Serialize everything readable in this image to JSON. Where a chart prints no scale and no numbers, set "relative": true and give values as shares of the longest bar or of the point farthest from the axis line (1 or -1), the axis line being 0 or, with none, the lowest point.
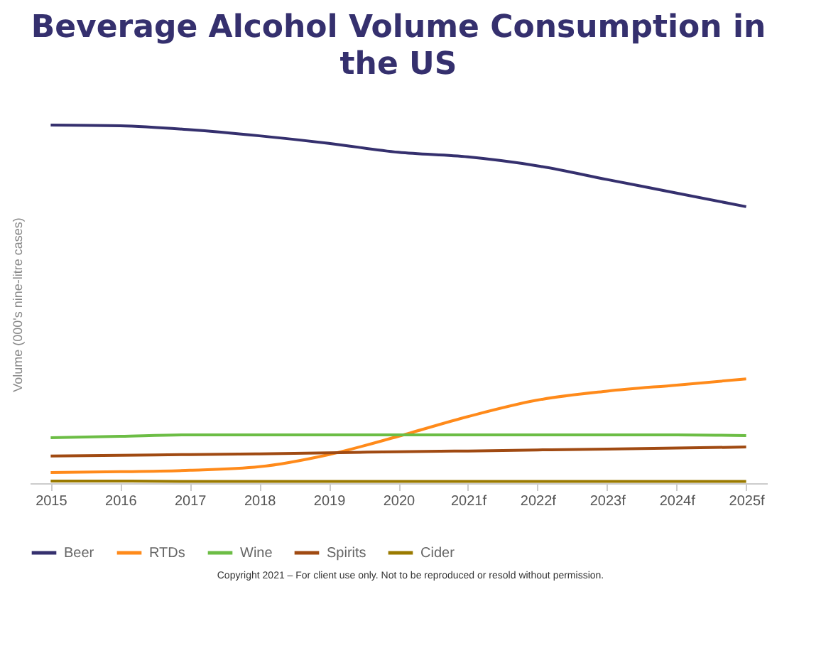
{
  "chart_data": {
    "type": "line",
    "title": "Beverage Alcohol Volume Consumption in the US",
    "ylabel": "Volume (000's nine-litre cases)",
    "relative": true,
    "legend": "bottom",
    "grid": false,
    "marker": "none",
    "line_style": "solid",
    "categories": [
      "2015",
      "2016",
      "2017",
      "2018",
      "2019",
      "2020",
      "2021f",
      "2022f",
      "2023f",
      "2024f",
      "2025f"
    ],
    "series": [
      {
        "name": "Beer",
        "color": "#35306e",
        "values": [
          1,
          0.998,
          0.987,
          0.97,
          0.949,
          0.924,
          0.911,
          0.886,
          0.848,
          0.81,
          0.772
        ]
      },
      {
        "name": "RTDs",
        "color": "#ff8a1a",
        "values": [
          0.03,
          0.032,
          0.036,
          0.046,
          0.08,
          0.131,
          0.186,
          0.232,
          0.257,
          0.274,
          0.291
        ]
      },
      {
        "name": "Wine",
        "color": "#6cbd45",
        "values": [
          0.127,
          0.131,
          0.135,
          0.135,
          0.135,
          0.135,
          0.135,
          0.135,
          0.135,
          0.135,
          0.133
        ]
      },
      {
        "name": "Spirits",
        "color": "#a04a12",
        "values": [
          0.076,
          0.078,
          0.08,
          0.082,
          0.085,
          0.088,
          0.09,
          0.093,
          0.095,
          0.098,
          0.101
        ]
      },
      {
        "name": "Cider",
        "color": "#9a7a00",
        "values": [
          0.006,
          0.006,
          0.005,
          0.005,
          0.005,
          0.005,
          0.005,
          0.005,
          0.005,
          0.005,
          0.005
        ]
      }
    ],
    "annotations": [
      "Copyright 2021 – For client use only. Not to be reproduced or resold without permission."
    ]
  }
}
